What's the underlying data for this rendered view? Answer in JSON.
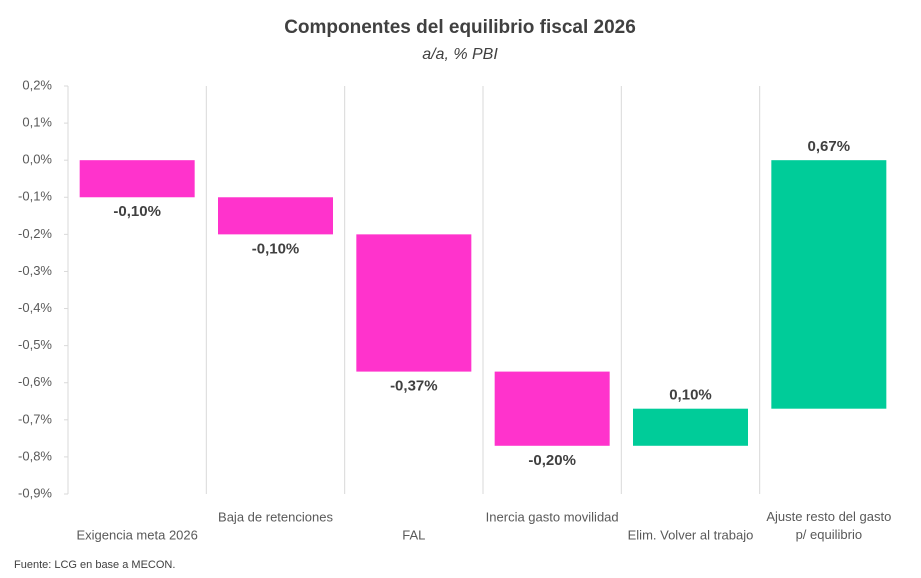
{
  "chart_data": {
    "type": "waterfall",
    "title": "Componentes del equilibrio fiscal 2026",
    "subtitle": "a/a, % PBI",
    "source": "Fuente: LCG en base a MECON.",
    "categories": [
      "Exigencia meta 2026",
      "Baja de retenciones",
      "FAL",
      "Inercia gasto movilidad",
      "Elim. Volver al trabajo",
      "Ajuste resto del gasto\np/ equilibrio"
    ],
    "values": [
      -0.1,
      -0.1,
      -0.37,
      -0.2,
      0.1,
      0.67
    ],
    "value_labels": [
      "-0,10%",
      "-0,10%",
      "-0,37%",
      "-0,20%",
      "0,10%",
      "0,67%"
    ],
    "colors": {
      "negative": "#ff33cc",
      "positive": "#00cc99"
    },
    "ylim": [
      -0.9,
      0.2
    ],
    "yticks": [
      {
        "value": 0.2,
        "label": "0,2%"
      },
      {
        "value": 0.1,
        "label": "0,1%"
      },
      {
        "value": 0,
        "label": "0,0%"
      },
      {
        "value": -0.1,
        "label": "-0,1%"
      },
      {
        "value": -0.2,
        "label": "-0,2%"
      },
      {
        "value": -0.3,
        "label": "-0,3%"
      },
      {
        "value": -0.4,
        "label": "-0,4%"
      },
      {
        "value": -0.5,
        "label": "-0,5%"
      },
      {
        "value": -0.6,
        "label": "-0,6%"
      },
      {
        "value": -0.7,
        "label": "-0,7%"
      },
      {
        "value": -0.8,
        "label": "-0,8%"
      },
      {
        "value": -0.9,
        "label": "-0,9%"
      }
    ]
  }
}
